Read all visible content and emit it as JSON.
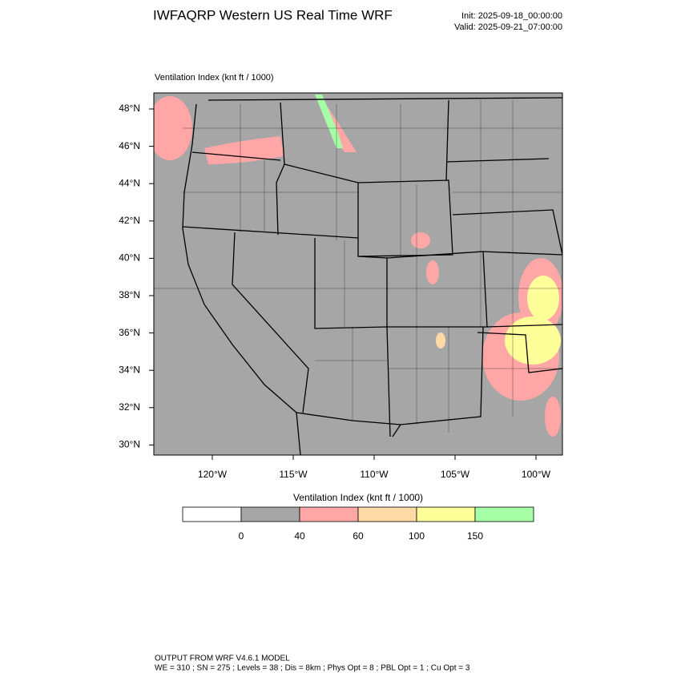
{
  "header": {
    "title": "IWFAQRP Western US Real Time WRF",
    "init": "Init: 2025-09-18_00:00:00",
    "valid": "Valid: 2025-09-21_07:00:00"
  },
  "map": {
    "field": "Ventilation Index   (knt ft / 1000)",
    "lat_ticks": [
      {
        "value": 48,
        "label": "48°N"
      },
      {
        "value": 46,
        "label": "46°N"
      },
      {
        "value": 44,
        "label": "44°N"
      },
      {
        "value": 42,
        "label": "42°N"
      },
      {
        "value": 40,
        "label": "40°N"
      },
      {
        "value": 38,
        "label": "38°N"
      },
      {
        "value": 36,
        "label": "36°N"
      },
      {
        "value": 34,
        "label": "34°N"
      },
      {
        "value": 32,
        "label": "32°N"
      },
      {
        "value": 30,
        "label": "30°N"
      }
    ],
    "lon_ticks": [
      {
        "value": -120,
        "label": "120°W"
      },
      {
        "value": -115,
        "label": "115°W"
      },
      {
        "value": -110,
        "label": "110°W"
      },
      {
        "value": -105,
        "label": "105°W"
      },
      {
        "value": -100,
        "label": "100°W"
      }
    ]
  },
  "colorbar": {
    "title": "Ventilation Index   (knt ft / 1000)",
    "levels": [
      0,
      40,
      60,
      100,
      150
    ],
    "colors": [
      "#ffffff",
      "#a6a6a6",
      "#ffa6a6",
      "#ffd9a6",
      "#ffff99",
      "#a6ffa6"
    ]
  },
  "footer": {
    "line1": "OUTPUT FROM WRF V4.6.1 MODEL",
    "line2": "WE = 310 ; SN = 275 ; Levels = 38 ; Dis = 8km ; Phys Opt = 8 ; PBL Opt = 1 ; Cu Opt = 3"
  }
}
